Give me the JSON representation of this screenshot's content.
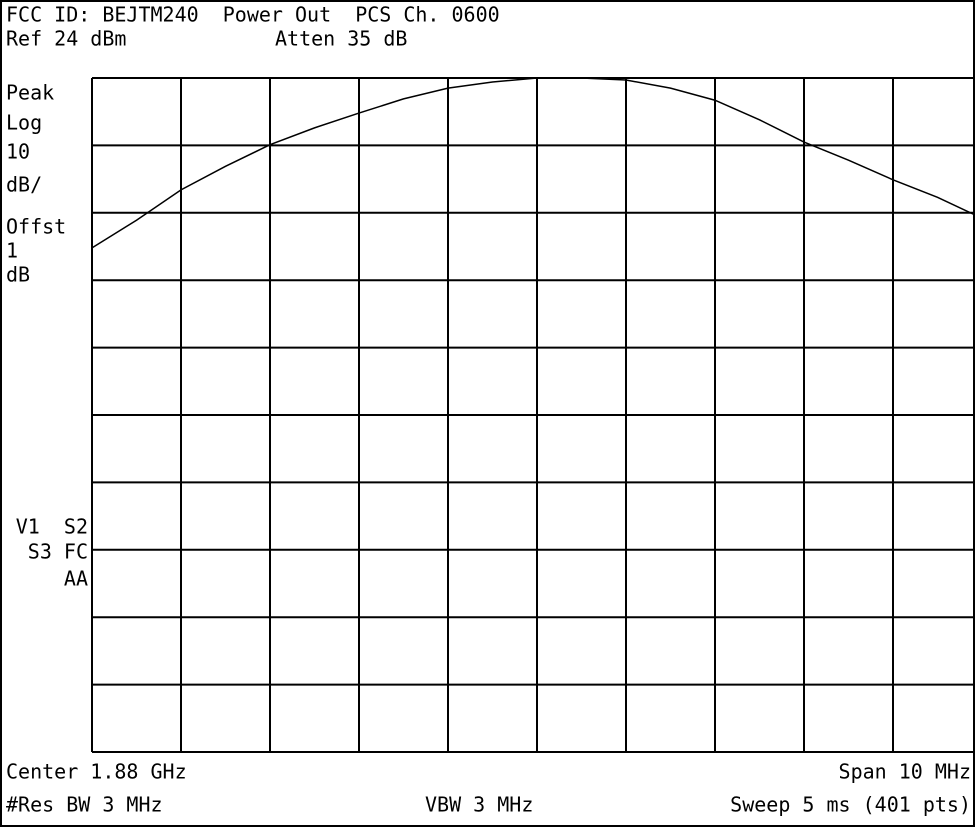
{
  "chart_data": {
    "type": "line",
    "header": [
      "FCC ID: BEJTM240  Power Out  PCS Ch. 0600"
    ],
    "ref_level": "Ref 24 dBm",
    "attenuation": "Atten 35 dB",
    "left_labels": [
      "Peak",
      "Log",
      "10",
      "dB/",
      "Offst",
      "1",
      "dB"
    ],
    "status_labels": [
      "V1  S2",
      "S3 FC",
      "AA"
    ],
    "center": "Center 1.88 GHz",
    "span": "Span 10 MHz",
    "res_bw": "#Res BW 3 MHz",
    "vbw": "VBW 3 MHz",
    "sweep": "Sweep 5 ms (401 pts)",
    "x": [
      1875,
      1875.5,
      1876,
      1876.5,
      1877,
      1877.5,
      1878,
      1878.5,
      1879,
      1879.5,
      1880,
      1880.5,
      1881,
      1881.5,
      1882,
      1882.5,
      1883,
      1883.5,
      1884,
      1884.5,
      1885
    ],
    "series": [
      {
        "name": "Trace",
        "color": "#000000",
        "values": [
          -1.2,
          2.9,
          7.4,
          10.9,
          14.1,
          16.6,
          18.8,
          20.9,
          22.5,
          23.4,
          24,
          24,
          23.7,
          22.5,
          20.7,
          17.8,
          14.5,
          11.8,
          8.9,
          6.3,
          3.2
        ]
      }
    ],
    "xlim": [
      1875,
      1885
    ],
    "ylim": [
      -76,
      24
    ],
    "xticks": [
      1875,
      1876,
      1877,
      1878,
      1879,
      1880,
      1881,
      1882,
      1883,
      1884,
      1885
    ],
    "yticks": [
      -76,
      -66,
      -56,
      -46,
      -36,
      -26,
      -16,
      -6,
      4,
      14,
      24
    ],
    "grid": true
  }
}
